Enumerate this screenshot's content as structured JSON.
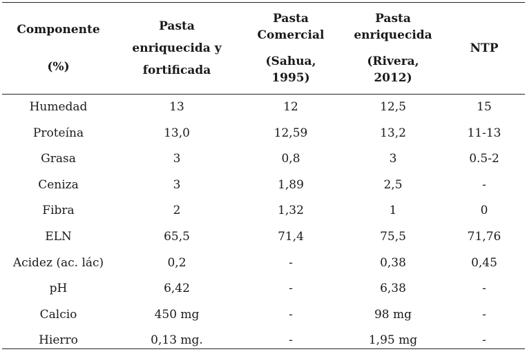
{
  "table": {
    "headers": [
      {
        "lines": [
          "Componente",
          "(%)"
        ]
      },
      {
        "lines": [
          "Pasta",
          "enriquecida y",
          "fortificada"
        ]
      },
      {
        "lines": [
          "Pasta",
          "Comercial",
          "(Sahua,",
          "1995)"
        ]
      },
      {
        "lines": [
          "Pasta",
          "enriquecida",
          "(Rivera,",
          "2012)"
        ]
      },
      {
        "lines": [
          "NTP"
        ]
      }
    ],
    "rows": [
      [
        "Humedad",
        "13",
        "12",
        "12,5",
        "15"
      ],
      [
        "Proteína",
        "13,0",
        "12,59",
        "13,2",
        "11-13"
      ],
      [
        "Grasa",
        "3",
        "0,8",
        "3",
        "0.5-2"
      ],
      [
        "Ceniza",
        "3",
        "1,89",
        "2,5",
        "-"
      ],
      [
        "Fibra",
        "2",
        "1,32",
        "1",
        "0"
      ],
      [
        "ELN",
        "65,5",
        "71,4",
        "75,5",
        "71,76"
      ],
      [
        "Acidez (ac. lác)",
        "0,2",
        "-",
        "0,38",
        "0,45"
      ],
      [
        "pH",
        "6,42",
        "-",
        "6,38",
        "-"
      ],
      [
        "Calcio",
        "450 mg",
        "-",
        "98 mg",
        "-"
      ],
      [
        "Hierro",
        "0,13 mg.",
        "-",
        "1,95 mg",
        "-"
      ]
    ]
  }
}
